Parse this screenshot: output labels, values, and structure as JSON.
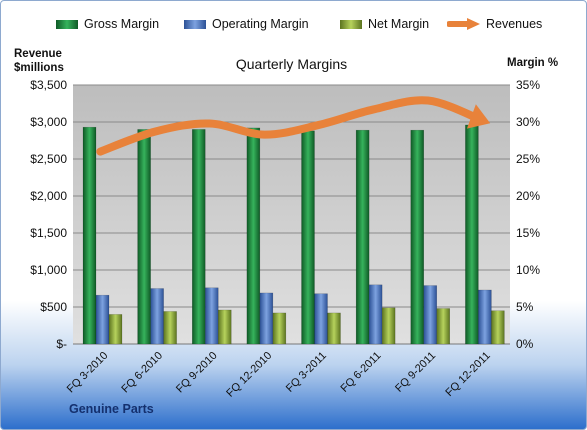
{
  "chart_data": {
    "type": "bar",
    "title": "Quarterly Margins",
    "ylabel_left": "Revenue $millions",
    "ylabel_right": "Margin %",
    "footer": "Genuine Parts",
    "categories": [
      "FQ 3-2010",
      "FQ 6-2010",
      "FQ 9-2010",
      "FQ 12-2010",
      "FQ 3-2011",
      "FQ 6-2011",
      "FQ 9-2011",
      "FQ 12-2011"
    ],
    "left_axis": {
      "min": 0,
      "max": 3500,
      "step": 500,
      "tick_labels": [
        "$-",
        "$500",
        "$1,000",
        "$1,500",
        "$2,000",
        "$2,500",
        "$3,000",
        "$3,500"
      ]
    },
    "right_axis": {
      "min": 0,
      "max": 35,
      "step": 5,
      "tick_labels": [
        "0%",
        "5%",
        "10%",
        "15%",
        "20%",
        "25%",
        "30%",
        "35%"
      ]
    },
    "series": [
      {
        "name": "Gross Margin",
        "type": "bar",
        "axis": "right",
        "color": "#1e8a3c",
        "values": [
          29.3,
          29.0,
          29.0,
          29.2,
          28.8,
          28.9,
          28.9,
          29.6
        ]
      },
      {
        "name": "Operating Margin",
        "type": "bar",
        "axis": "right",
        "color": "#4a78c0",
        "values": [
          6.6,
          7.5,
          7.6,
          6.9,
          6.8,
          8.0,
          7.9,
          7.3
        ]
      },
      {
        "name": "Net Margin",
        "type": "bar",
        "axis": "right",
        "color": "#8aa83a",
        "values": [
          4.0,
          4.4,
          4.6,
          4.2,
          4.2,
          4.9,
          4.8,
          4.5
        ]
      },
      {
        "name": "Revenues",
        "type": "line",
        "axis": "left",
        "color": "#e8823a",
        "values": [
          2600,
          2870,
          2980,
          2830,
          2960,
          3170,
          3290,
          3020
        ]
      }
    ],
    "grid": true,
    "legend_position": "top"
  }
}
